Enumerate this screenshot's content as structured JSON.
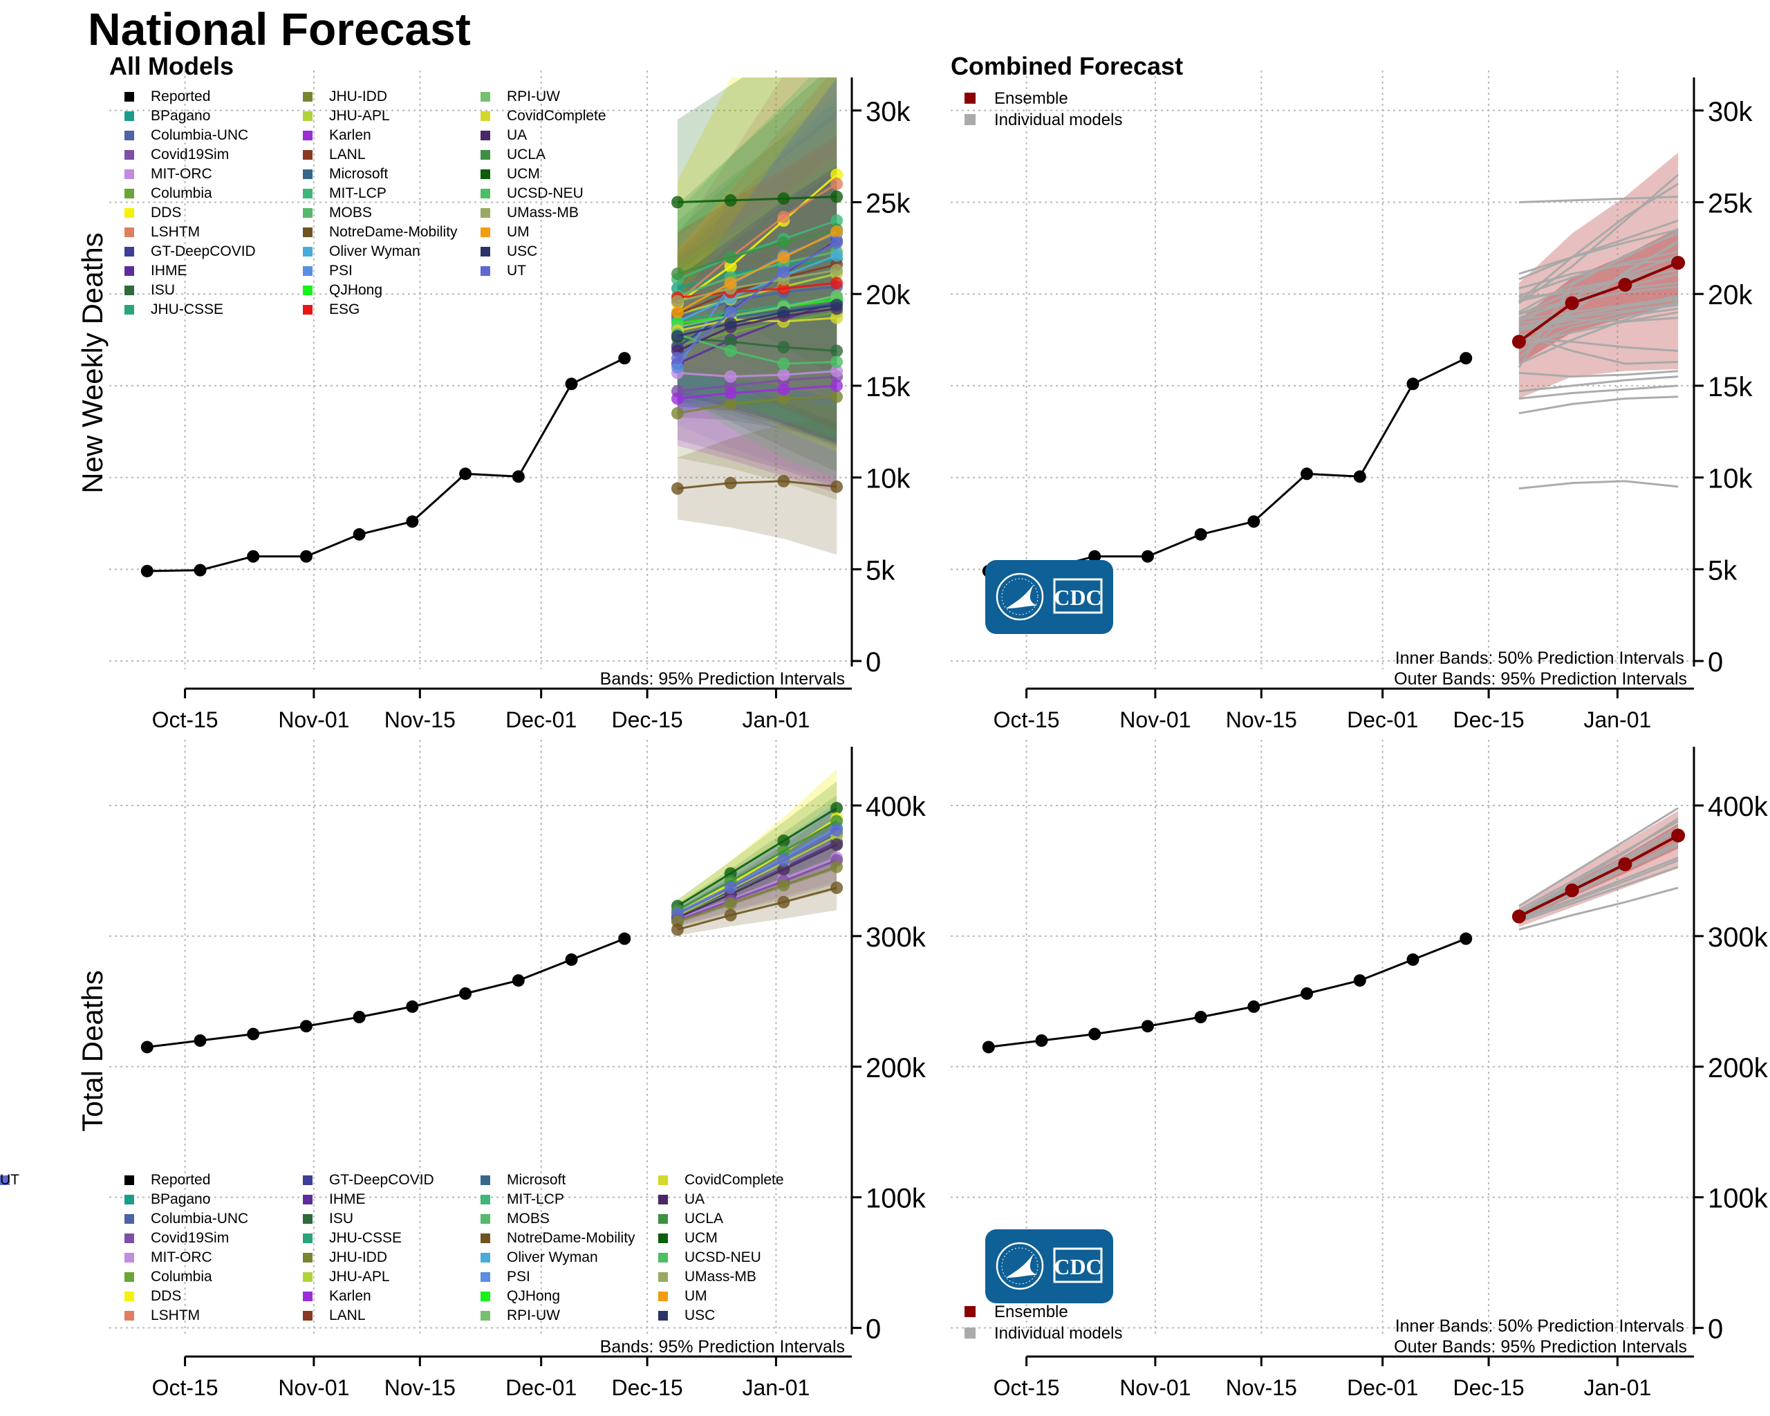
{
  "page": {
    "title": "National Forecast"
  },
  "notes": {
    "bands95": "Bands: 95% Prediction Intervals",
    "inner50": "Inner Bands: 50% Prediction Intervals",
    "outer95": "Outer Bands: 95% Prediction Intervals"
  },
  "logo": {
    "text": "CDC"
  },
  "legend_models": [
    {
      "name": "Reported",
      "color": "#000000"
    },
    {
      "name": "BPagano",
      "color": "#1a9e8a"
    },
    {
      "name": "Columbia-UNC",
      "color": "#4e62a8"
    },
    {
      "name": "Covid19Sim",
      "color": "#7e4fa5"
    },
    {
      "name": "MIT-ORC",
      "color": "#c08be0"
    },
    {
      "name": "Columbia",
      "color": "#6aa636"
    },
    {
      "name": "DDS",
      "color": "#f4f20a"
    },
    {
      "name": "LSHTM",
      "color": "#df7f5f"
    },
    {
      "name": "GT-DeepCOVID",
      "color": "#3e3e98"
    },
    {
      "name": "IHME",
      "color": "#5c2e9c"
    },
    {
      "name": "ISU",
      "color": "#2e6a3a"
    },
    {
      "name": "JHU-CSSE",
      "color": "#2aa57a"
    },
    {
      "name": "JHU-IDD",
      "color": "#7b8431"
    },
    {
      "name": "JHU-APL",
      "color": "#b2d23a"
    },
    {
      "name": "Karlen",
      "color": "#9a2fd8"
    },
    {
      "name": "LANL",
      "color": "#8a3a22"
    },
    {
      "name": "Microsoft",
      "color": "#35688a"
    },
    {
      "name": "MIT-LCP",
      "color": "#3cb878"
    },
    {
      "name": "MOBS",
      "color": "#55b86c"
    },
    {
      "name": "NotreDame-Mobility",
      "color": "#6e5420"
    },
    {
      "name": "Oliver Wyman",
      "color": "#48acd8"
    },
    {
      "name": "PSI",
      "color": "#5a8ee0"
    },
    {
      "name": "QJHong",
      "color": "#16f21a"
    },
    {
      "name": "ESG",
      "color": "#ea1616"
    },
    {
      "name": "RPI-UW",
      "color": "#74c06e"
    },
    {
      "name": "CovidComplete",
      "color": "#d2d82c"
    },
    {
      "name": "UA",
      "color": "#4a2868"
    },
    {
      "name": "UCLA",
      "color": "#3c9040"
    },
    {
      "name": "UCM",
      "color": "#0c5e0c"
    },
    {
      "name": "UCSD-NEU",
      "color": "#4cbe66"
    },
    {
      "name": "UMass-MB",
      "color": "#98aa62"
    },
    {
      "name": "UM",
      "color": "#f29c10"
    },
    {
      "name": "USC",
      "color": "#2a3468"
    },
    {
      "name": "UT",
      "color": "#5e6ad2"
    }
  ],
  "legend_combined": [
    {
      "name": "Ensemble",
      "color": "#8b0000"
    },
    {
      "name": "Individual models",
      "color": "#aaaaaa"
    }
  ],
  "chart_data": [
    {
      "type": "line",
      "title": "All Models",
      "ylabel": "New Weekly Deaths",
      "x_ticks": [
        "Oct-15",
        "Nov-01",
        "Nov-15",
        "Dec-01",
        "Dec-15",
        "Jan-01"
      ],
      "x_tick_dates": [
        "2020-10-15",
        "2020-11-01",
        "2020-11-15",
        "2020-12-01",
        "2020-12-15",
        "2021-01-01"
      ],
      "xlim": [
        "2020-10-05",
        "2021-01-11"
      ],
      "y_ticks": [
        0,
        5000,
        10000,
        15000,
        20000,
        25000,
        30000
      ],
      "y_tick_labels": [
        "0",
        "5k",
        "10k",
        "15k",
        "20k",
        "25k",
        "30k"
      ],
      "ylim": [
        -300,
        31800
      ],
      "grid": true,
      "note": "Bands: 95% Prediction Intervals",
      "reported": {
        "name": "Reported",
        "x": [
          "2020-10-10",
          "2020-10-17",
          "2020-10-24",
          "2020-10-31",
          "2020-11-07",
          "2020-11-14",
          "2020-11-21",
          "2020-11-28",
          "2020-12-05",
          "2020-12-12"
        ],
        "y": [
          4900,
          4950,
          5700,
          5700,
          6900,
          7600,
          10200,
          10050,
          15100,
          16500
        ]
      },
      "forecast_x": [
        "2020-12-19",
        "2020-12-26",
        "2021-01-02",
        "2021-01-09"
      ],
      "forecasts": [
        {
          "name": "BPagano",
          "y": [
            20300,
            21100,
            21600,
            21900
          ]
        },
        {
          "name": "Columbia-UNC",
          "y": [
            18700,
            19600,
            20100,
            20400
          ]
        },
        {
          "name": "Covid19Sim",
          "y": [
            14700,
            15000,
            15300,
            15500
          ]
        },
        {
          "name": "MIT-ORC",
          "y": [
            15700,
            15500,
            15600,
            15800
          ]
        },
        {
          "name": "Columbia",
          "y": [
            17200,
            17900,
            18500,
            19000
          ]
        },
        {
          "name": "DDS",
          "y": [
            19500,
            21500,
            24000,
            26500
          ]
        },
        {
          "name": "LSHTM",
          "y": [
            19600,
            22000,
            24200,
            26000
          ]
        },
        {
          "name": "GT-DeepCOVID",
          "y": [
            17100,
            19100,
            21100,
            22900
          ]
        },
        {
          "name": "IHME",
          "y": [
            16200,
            17500,
            18600,
            19600
          ]
        },
        {
          "name": "ISU",
          "y": [
            17600,
            17400,
            17100,
            16900
          ]
        },
        {
          "name": "JHU-CSSE",
          "y": [
            18600,
            19000,
            19400,
            19800
          ]
        },
        {
          "name": "JHU-IDD",
          "y": [
            13500,
            14000,
            14300,
            14400
          ]
        },
        {
          "name": "JHU-APL",
          "y": [
            18900,
            19700,
            20400,
            21100
          ]
        },
        {
          "name": "Karlen",
          "y": [
            14300,
            14600,
            14800,
            15000
          ]
        },
        {
          "name": "LANL",
          "y": [
            18900,
            20100,
            20900,
            21600
          ]
        },
        {
          "name": "Microsoft",
          "y": [
            18100,
            18700,
            19100,
            19500
          ]
        },
        {
          "name": "MIT-LCP",
          "y": [
            20800,
            22000,
            23000,
            24000
          ]
        },
        {
          "name": "MOBS",
          "y": [
            19900,
            20900,
            21700,
            22300
          ]
        },
        {
          "name": "NotreDame-Mobility",
          "y": [
            9400,
            9700,
            9800,
            9500
          ]
        },
        {
          "name": "Oliver Wyman",
          "y": [
            18500,
            19800,
            21000,
            22100
          ]
        },
        {
          "name": "PSI",
          "y": [
            16000,
            20500,
            22100,
            23300
          ]
        },
        {
          "name": "QJHong",
          "y": [
            18400,
            18800,
            19300,
            19700
          ]
        },
        {
          "name": "ESG",
          "y": [
            19800,
            20100,
            20300,
            20600
          ]
        },
        {
          "name": "RPI-UW",
          "y": [
            18200,
            18800,
            19300,
            19900
          ]
        },
        {
          "name": "CovidComplete",
          "y": [
            18000,
            18600,
            18500,
            18700
          ]
        },
        {
          "name": "UA",
          "y": [
            16900,
            18200,
            18800,
            19200
          ]
        },
        {
          "name": "UCLA",
          "y": [
            21100,
            22000,
            22800,
            23500
          ]
        },
        {
          "name": "UCM",
          "y": [
            25000,
            25100,
            25200,
            25300
          ]
        },
        {
          "name": "UCSD-NEU",
          "y": [
            17800,
            16900,
            16200,
            16300
          ]
        },
        {
          "name": "UMass-MB",
          "y": [
            19600,
            20300,
            20800,
            21300
          ]
        },
        {
          "name": "UM",
          "y": [
            19000,
            20600,
            22000,
            23400
          ]
        },
        {
          "name": "USC",
          "y": [
            17700,
            18400,
            19000,
            19400
          ]
        },
        {
          "name": "UT",
          "y": [
            16500,
            19000,
            21200,
            22800
          ]
        }
      ]
    },
    {
      "type": "line",
      "title": "Combined Forecast",
      "ylabel": "",
      "x_ticks": [
        "Oct-15",
        "Nov-01",
        "Nov-15",
        "Dec-01",
        "Dec-15",
        "Jan-01"
      ],
      "y_ticks": [
        0,
        5000,
        10000,
        15000,
        20000,
        25000,
        30000
      ],
      "y_tick_labels": [
        "0",
        "5k",
        "10k",
        "15k",
        "20k",
        "25k",
        "30k"
      ],
      "ylim": [
        -300,
        31800
      ],
      "grid": true,
      "note": "Inner Bands: 50% Prediction Intervals / Outer Bands: 95% Prediction Intervals",
      "ensemble": {
        "name": "Ensemble",
        "x": [
          "2020-12-19",
          "2020-12-26",
          "2021-01-02",
          "2021-01-09"
        ],
        "y": [
          17400,
          19500,
          20500,
          21700
        ],
        "lower50": [
          16200,
          17900,
          18700,
          19500
        ],
        "upper50": [
          18600,
          20900,
          22100,
          23600
        ],
        "lower95": [
          14300,
          15500,
          15800,
          15900
        ],
        "upper95": [
          20600,
          23300,
          25300,
          27700
        ]
      },
      "individual_models": "same forecasts as All Models panel"
    },
    {
      "type": "line",
      "title": "",
      "ylabel": "Total Deaths",
      "x_ticks": [
        "Oct-15",
        "Nov-01",
        "Nov-15",
        "Dec-01",
        "Dec-15",
        "Jan-01"
      ],
      "y_ticks": [
        0,
        100000,
        200000,
        300000,
        400000
      ],
      "y_tick_labels": [
        "0",
        "100k",
        "200k",
        "300k",
        "400k"
      ],
      "ylim": [
        -5000,
        445000
      ],
      "grid": true,
      "note": "Bands: 95% Prediction Intervals",
      "reported": {
        "name": "Reported",
        "x": [
          "2020-10-10",
          "2020-10-17",
          "2020-10-24",
          "2020-10-31",
          "2020-11-07",
          "2020-11-14",
          "2020-11-21",
          "2020-11-28",
          "2020-12-05",
          "2020-12-12"
        ],
        "y": [
          215000,
          220000,
          225000,
          231000,
          238000,
          246000,
          256000,
          266000,
          282000,
          298000
        ]
      },
      "forecast_x": [
        "2020-12-19",
        "2020-12-26",
        "2021-01-02",
        "2021-01-09"
      ],
      "forecasts": [
        {
          "name": "UCM",
          "y": [
            323000,
            348000,
            373000,
            398000
          ]
        },
        {
          "name": "DDS",
          "y": [
            318000,
            340000,
            364000,
            390000
          ]
        },
        {
          "name": "PSI",
          "y": [
            318000,
            338000,
            360000,
            383000
          ]
        },
        {
          "name": "GT-DeepCOVID",
          "y": [
            316000,
            335000,
            356000,
            378000
          ]
        },
        {
          "name": "IHME",
          "y": [
            315000,
            333000,
            352000,
            372000
          ]
        },
        {
          "name": "Columbia",
          "y": [
            315000,
            333000,
            351000,
            370000
          ]
        },
        {
          "name": "JHU-APL",
          "y": [
            316000,
            336000,
            356000,
            377000
          ]
        },
        {
          "name": "MIT-ORC",
          "y": [
            313000,
            328000,
            344000,
            360000
          ]
        },
        {
          "name": "UA",
          "y": [
            314000,
            332000,
            351000,
            370000
          ]
        },
        {
          "name": "UCLA",
          "y": [
            320000,
            342000,
            365000,
            388000
          ]
        },
        {
          "name": "UT",
          "y": [
            317000,
            337000,
            358000,
            381000
          ]
        },
        {
          "name": "Covid19Sim",
          "y": [
            312000,
            327000,
            342000,
            358000
          ]
        },
        {
          "name": "JHU-IDD",
          "y": [
            311000,
            325000,
            339000,
            353000
          ]
        },
        {
          "name": "NotreDame-Mobility",
          "y": [
            305000,
            316000,
            326000,
            337000
          ]
        }
      ]
    },
    {
      "type": "line",
      "title": "",
      "ylabel": "",
      "x_ticks": [
        "Oct-15",
        "Nov-01",
        "Nov-15",
        "Dec-01",
        "Dec-15",
        "Jan-01"
      ],
      "y_ticks": [
        0,
        100000,
        200000,
        300000,
        400000
      ],
      "y_tick_labels": [
        "0",
        "100k",
        "200k",
        "300k",
        "400k"
      ],
      "ylim": [
        -5000,
        445000
      ],
      "grid": true,
      "note": "Inner Bands: 50% Prediction Intervals / Outer Bands: 95% Prediction Intervals",
      "ensemble": {
        "name": "Ensemble",
        "x": [
          "2020-12-19",
          "2020-12-26",
          "2021-01-02",
          "2021-01-09"
        ],
        "y": [
          315000,
          335000,
          355000,
          377000
        ],
        "lower50": [
          312000,
          330000,
          348000,
          367000
        ],
        "upper50": [
          318000,
          340000,
          362000,
          386000
        ],
        "lower95": [
          307000,
          322000,
          337000,
          352000
        ],
        "upper95": [
          322000,
          348000,
          372000,
          396000
        ]
      },
      "individual_models": "same forecasts as All Models panel"
    }
  ]
}
